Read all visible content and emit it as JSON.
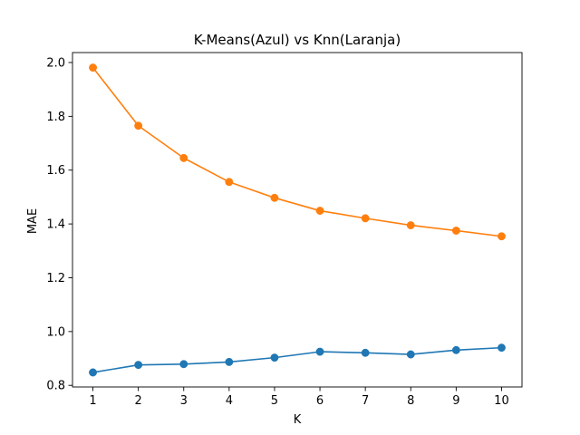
{
  "chart_data": {
    "type": "line",
    "title": "K-Means(Azul) vs Knn(Laranja)",
    "xlabel": "K",
    "ylabel": "MAE",
    "x": [
      1,
      2,
      3,
      4,
      5,
      6,
      7,
      8,
      9,
      10
    ],
    "xticks": [
      "1",
      "2",
      "3",
      "4",
      "5",
      "6",
      "7",
      "8",
      "9",
      "10"
    ],
    "xlim": [
      0.55,
      10.45
    ],
    "yticks": [
      "0.8",
      "1.0",
      "1.2",
      "1.4",
      "1.6",
      "1.8",
      "2.0"
    ],
    "ylim": [
      0.794,
      2.037
    ],
    "grid": false,
    "legend": "none",
    "series": [
      {
        "color": "#1f77b4",
        "marker": "circle",
        "values": [
          0.848,
          0.876,
          0.879,
          0.887,
          0.903,
          0.925,
          0.921,
          0.915,
          0.931,
          0.94
        ]
      },
      {
        "color": "#ff7f0e",
        "marker": "circle",
        "values": [
          1.981,
          1.765,
          1.645,
          1.556,
          1.497,
          1.449,
          1.421,
          1.395,
          1.375,
          1.354
        ]
      }
    ]
  }
}
